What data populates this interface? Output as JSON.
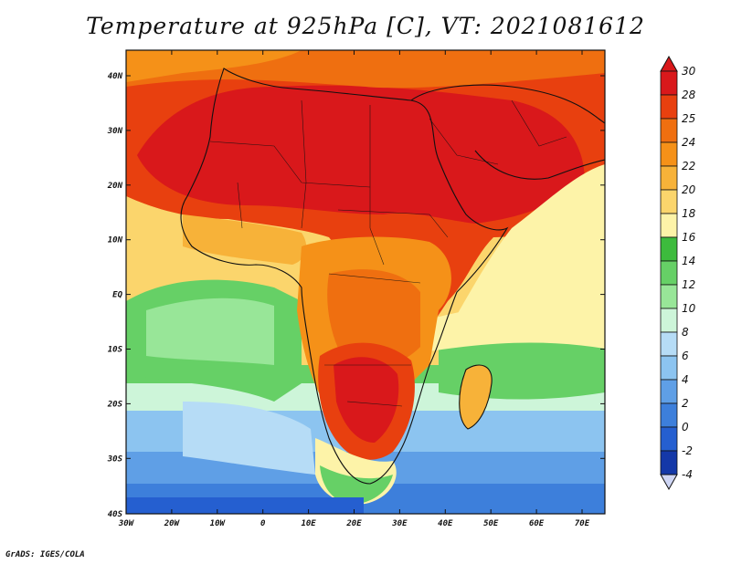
{
  "title": "Temperature at 925hPa [C], VT: 2021081612",
  "credit": "GrADS: IGES/COLA",
  "map": {
    "lat_labels": [
      "40N",
      "30N",
      "20N",
      "10N",
      "EQ",
      "10S",
      "20S",
      "30S",
      "40S"
    ],
    "lon_labels": [
      "30W",
      "20W",
      "10W",
      "0",
      "10E",
      "20E",
      "30E",
      "40E",
      "50E",
      "60E",
      "70E"
    ]
  },
  "colorbar": {
    "labels": [
      "30",
      "28",
      "25",
      "24",
      "22",
      "20",
      "18",
      "16",
      "14",
      "12",
      "10",
      "8",
      "6",
      "4",
      "2",
      "0",
      "-2",
      "-4"
    ],
    "colors": [
      "#d9181b",
      "#e8400f",
      "#ef6f10",
      "#f59118",
      "#f7b239",
      "#fbd56c",
      "#fdf3a8",
      "#3dbb3d",
      "#66d066",
      "#98e698",
      "#cdf5d9",
      "#b6dcf6",
      "#8cc4f0",
      "#5f9fe6",
      "#3d7fdb",
      "#255fd0",
      "#1438a8",
      "#0c1c78",
      "#cfd6f5"
    ]
  },
  "colors": {
    "hot": "#d9181b",
    "warm": "#f59118",
    "mild": "#fdf3a8",
    "cool": "#66d066",
    "cold": "#8cc4f0",
    "frigid": "#255fd0"
  }
}
